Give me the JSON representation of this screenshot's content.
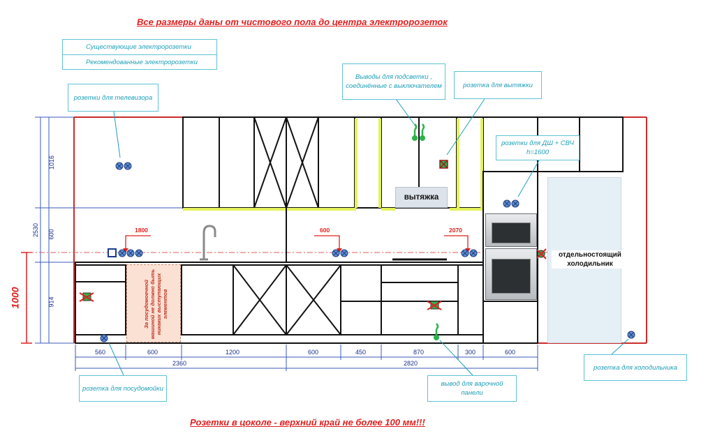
{
  "header": {
    "title": "Все размеры даны от чистового пола до центра электророзеток",
    "footer": "Розетки  в цоколе - верхний край не более 100 мм!!!"
  },
  "legend": {
    "existing": "Существующие электророзетки",
    "recommended": "Рекомендованные электророзетки"
  },
  "callouts": {
    "tv": "розетки для телевизора",
    "lighting": "Выводы для подсветки , соединённые с выключателем",
    "hood_socket": "розетка для вытяжки",
    "dw_mw": "розетки для ДШ + СВЧ  h=1600",
    "dishwasher": "розетка для посудомойки",
    "hob": "вывод для варочной панели",
    "fridge": "розетка для холодильника"
  },
  "labels": {
    "hood": "вытяжка",
    "fridge": "отдельностоящий холодильник",
    "dw_note": "За посудомоечной машиной не должно быть никаких выступающих элементов"
  },
  "marks": {
    "h1800": "1800",
    "h600": "600",
    "h2070": "2070",
    "h1000": "1000"
  },
  "dims_vertical": {
    "upper": "1016",
    "splash": "600",
    "base": "914",
    "total": "2530"
  },
  "dims_bottom": {
    "segments": [
      "560",
      "600",
      "1200",
      "600",
      "450",
      "870",
      "300",
      "600"
    ],
    "total_left": "2360",
    "total_right": "2820"
  },
  "colors": {
    "accent_red": "#e02020",
    "callout_teal": "#1f9fb8",
    "dimension_blue": "#1a2f8c",
    "wall_red": "#e02020",
    "highlight_yellow": "#e4f25a",
    "socket_blue": "#5b8fd6",
    "socket_green": "#2bb34a"
  }
}
